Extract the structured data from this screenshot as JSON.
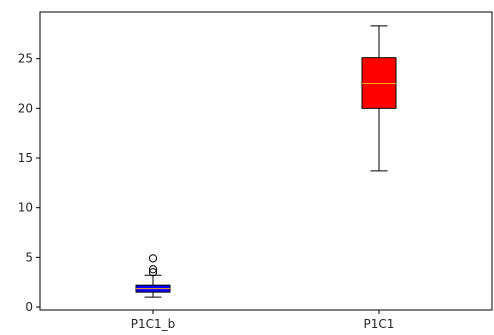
{
  "chart_data": {
    "type": "box",
    "categories": [
      "P1C1_b",
      "P1C1"
    ],
    "boxes": [
      {
        "category": "P1C1_b",
        "whisker_low": 1.0,
        "q1": 1.5,
        "median": 1.85,
        "q3": 2.2,
        "whisker_high": 3.2,
        "outliers": [
          3.5,
          3.8,
          4.9
        ],
        "color": "#0000ff"
      },
      {
        "category": "P1C1",
        "whisker_low": 13.7,
        "q1": 20.0,
        "median": 22.5,
        "q3": 25.1,
        "whisker_high": 28.3,
        "outliers": [],
        "color": "#ff0000"
      }
    ],
    "median_color": "#ff9f1c",
    "y_ticks": [
      0,
      5,
      10,
      15,
      20,
      25
    ],
    "ylim": [
      -0.3,
      29.7
    ],
    "title": "",
    "xlabel": "",
    "ylabel": "",
    "grid": false
  }
}
